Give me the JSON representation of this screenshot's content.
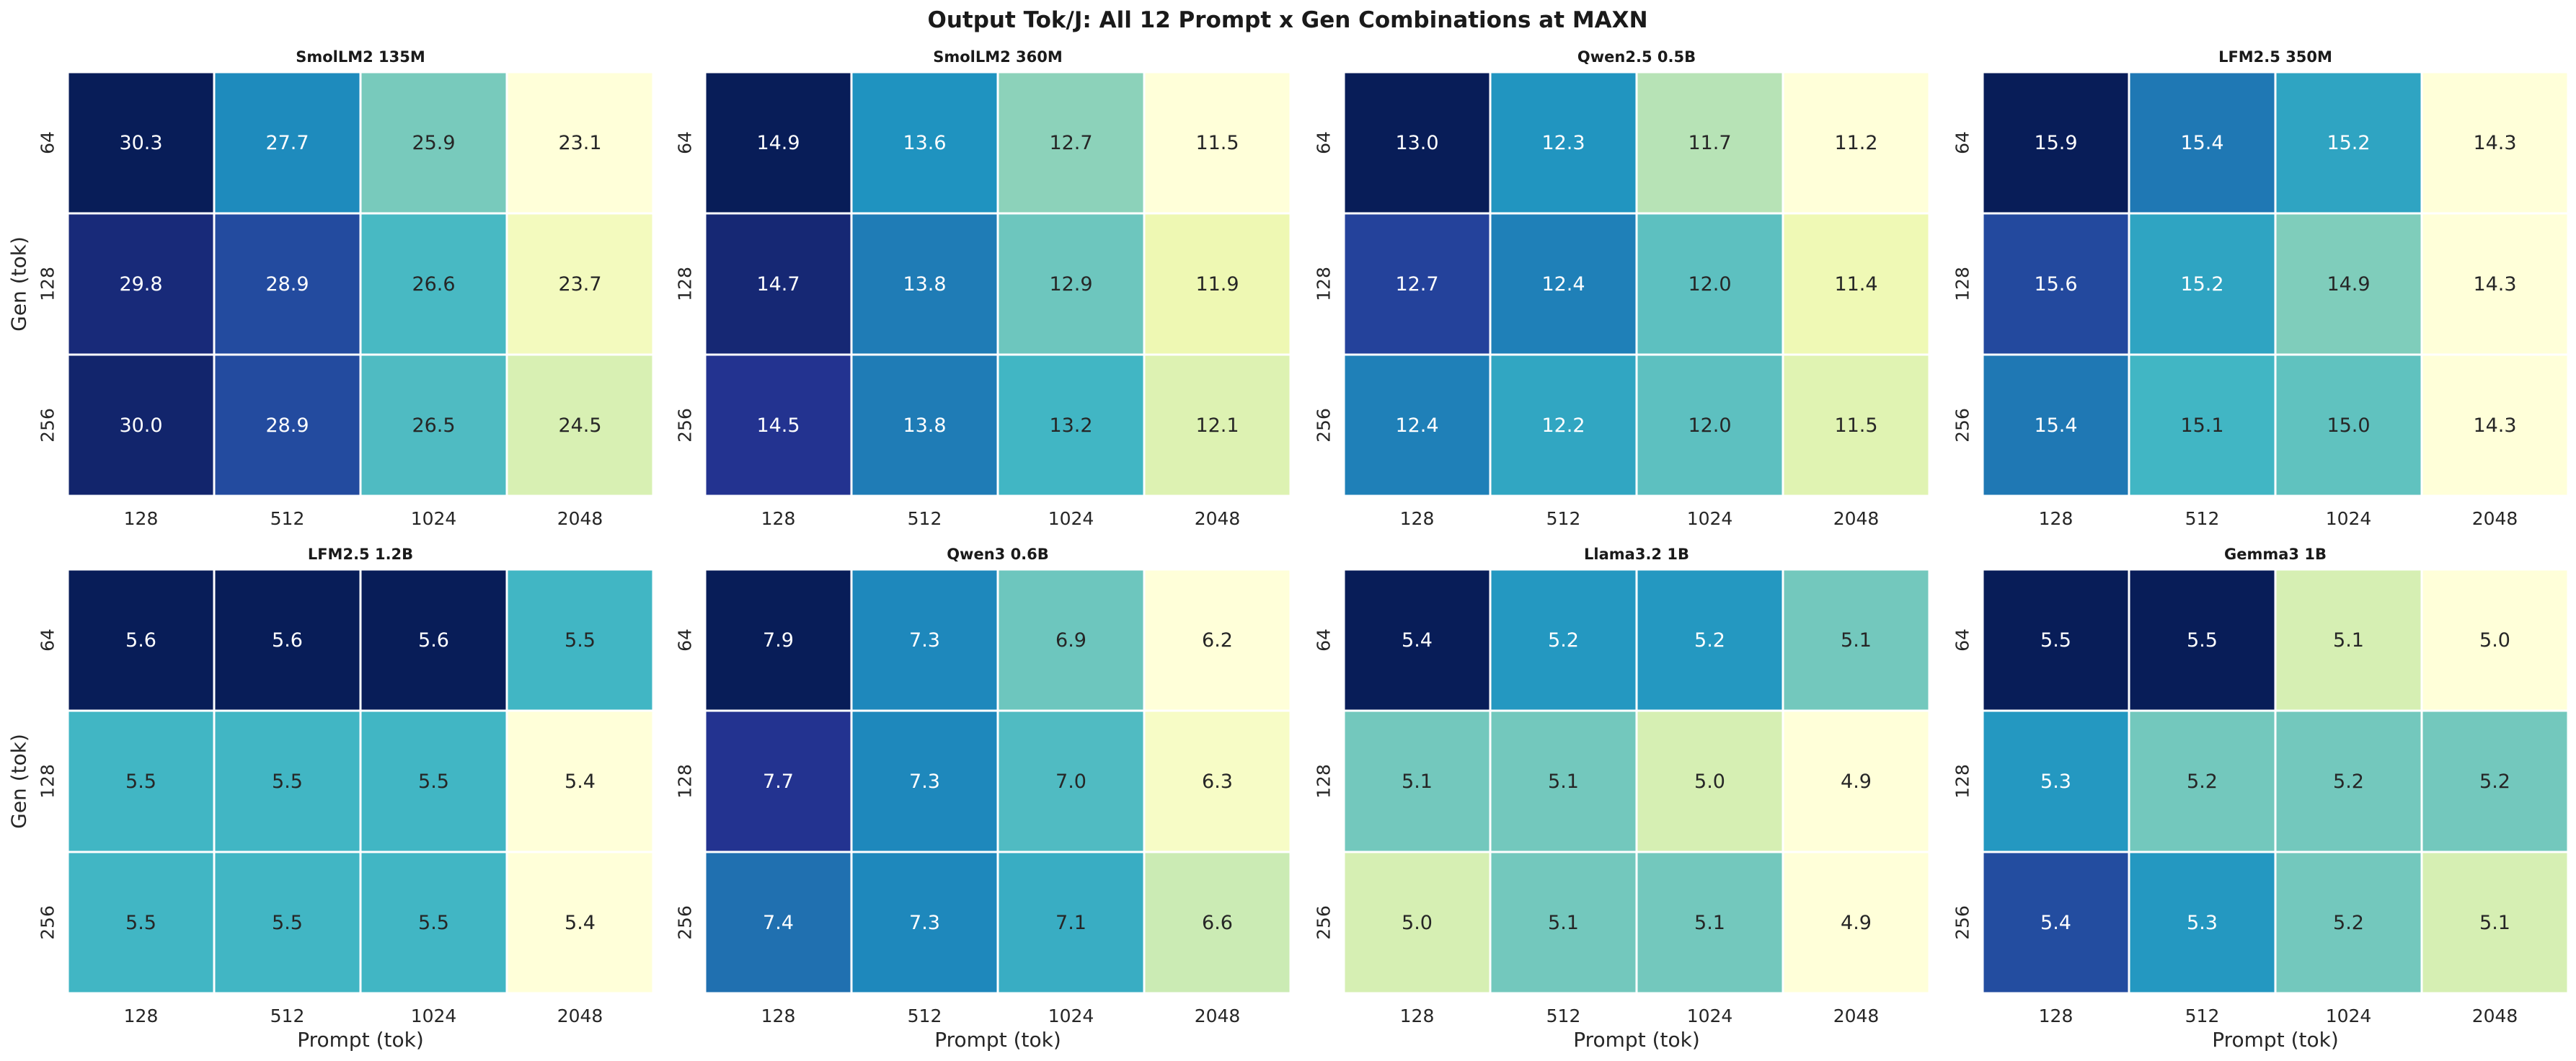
{
  "suptitle": "Output Tok/J: All 12 Prompt x Gen Combinations at MAXN",
  "colormap": "YlGnBu",
  "chart_data": [
    {
      "type": "heatmap",
      "title": "SmolLM2 135M",
      "x": [
        "128",
        "512",
        "1024",
        "2048"
      ],
      "y": [
        "64",
        "128",
        "256"
      ],
      "xlabel": "",
      "ylabel": "Gen (tok)",
      "values": [
        [
          30.3,
          27.7,
          25.9,
          23.1
        ],
        [
          29.8,
          28.9,
          26.6,
          23.7
        ],
        [
          30.0,
          28.9,
          26.5,
          24.5
        ]
      ]
    },
    {
      "type": "heatmap",
      "title": "SmolLM2 360M",
      "x": [
        "128",
        "512",
        "1024",
        "2048"
      ],
      "y": [
        "64",
        "128",
        "256"
      ],
      "xlabel": "",
      "ylabel": "",
      "values": [
        [
          14.9,
          13.6,
          12.7,
          11.5
        ],
        [
          14.7,
          13.8,
          12.9,
          11.9
        ],
        [
          14.5,
          13.8,
          13.2,
          12.1
        ]
      ]
    },
    {
      "type": "heatmap",
      "title": "Qwen2.5 0.5B",
      "x": [
        "128",
        "512",
        "1024",
        "2048"
      ],
      "y": [
        "64",
        "128",
        "256"
      ],
      "xlabel": "",
      "ylabel": "",
      "values": [
        [
          13.0,
          12.3,
          11.7,
          11.2
        ],
        [
          12.7,
          12.4,
          12.0,
          11.4
        ],
        [
          12.4,
          12.2,
          12.0,
          11.5
        ]
      ]
    },
    {
      "type": "heatmap",
      "title": "LFM2.5 350M",
      "x": [
        "128",
        "512",
        "1024",
        "2048"
      ],
      "y": [
        "64",
        "128",
        "256"
      ],
      "xlabel": "",
      "ylabel": "",
      "values": [
        [
          15.9,
          15.4,
          15.2,
          14.3
        ],
        [
          15.6,
          15.2,
          14.9,
          14.3
        ],
        [
          15.4,
          15.1,
          15.0,
          14.3
        ]
      ]
    },
    {
      "type": "heatmap",
      "title": "LFM2.5 1.2B",
      "x": [
        "128",
        "512",
        "1024",
        "2048"
      ],
      "y": [
        "64",
        "128",
        "256"
      ],
      "xlabel": "Prompt (tok)",
      "ylabel": "Gen (tok)",
      "values": [
        [
          5.6,
          5.6,
          5.6,
          5.5
        ],
        [
          5.5,
          5.5,
          5.5,
          5.4
        ],
        [
          5.5,
          5.5,
          5.5,
          5.4
        ]
      ]
    },
    {
      "type": "heatmap",
      "title": "Qwen3 0.6B",
      "x": [
        "128",
        "512",
        "1024",
        "2048"
      ],
      "y": [
        "64",
        "128",
        "256"
      ],
      "xlabel": "Prompt (tok)",
      "ylabel": "",
      "values": [
        [
          7.9,
          7.3,
          6.9,
          6.2
        ],
        [
          7.7,
          7.3,
          7.0,
          6.3
        ],
        [
          7.4,
          7.3,
          7.1,
          6.6
        ]
      ]
    },
    {
      "type": "heatmap",
      "title": "Llama3.2 1B",
      "x": [
        "128",
        "512",
        "1024",
        "2048"
      ],
      "y": [
        "64",
        "128",
        "256"
      ],
      "xlabel": "Prompt (tok)",
      "ylabel": "",
      "values": [
        [
          5.4,
          5.2,
          5.2,
          5.1
        ],
        [
          5.1,
          5.1,
          5.0,
          4.9
        ],
        [
          5.0,
          5.1,
          5.1,
          4.9
        ]
      ]
    },
    {
      "type": "heatmap",
      "title": "Gemma3 1B",
      "x": [
        "128",
        "512",
        "1024",
        "2048"
      ],
      "y": [
        "64",
        "128",
        "256"
      ],
      "xlabel": "Prompt (tok)",
      "ylabel": "",
      "values": [
        [
          5.5,
          5.5,
          5.1,
          5.0
        ],
        [
          5.3,
          5.2,
          5.2,
          5.2
        ],
        [
          5.4,
          5.3,
          5.2,
          5.1
        ]
      ]
    }
  ]
}
